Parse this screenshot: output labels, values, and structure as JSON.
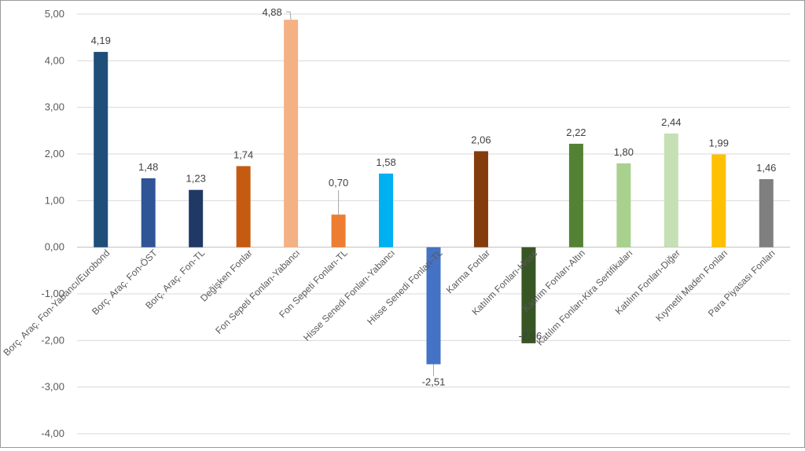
{
  "chart_data": {
    "type": "bar",
    "categories": [
      "Borç. Araç. Fon-Yabancı/Eurobond",
      "Borç. Araç. Fon-ÖST",
      "Borç. Araç. Fon-TL",
      "Değişken Fonlar",
      "Fon Sepeti Fonları-Yabancı",
      "Fon Sepeti Fonları-TL",
      "Hisse Senedi Fonları-Yabancı",
      "Hisse Senedi Fonları-TL",
      "Karma Fonlar",
      "Katılım Fonları-Hisse",
      "Katılım Fonları-Altın",
      "Katılım Fonları-Kira Sertifikaları",
      "Katılım Fonları-Diğer",
      "Kıymetli Maden Fonları",
      "Para Piyasası Fonları"
    ],
    "values": [
      4.19,
      1.48,
      1.23,
      1.74,
      4.88,
      0.7,
      1.58,
      -2.51,
      2.06,
      -2.06,
      2.22,
      1.8,
      2.44,
      1.99,
      1.46
    ],
    "value_labels": [
      "4,19",
      "1,48",
      "1,23",
      "1,74",
      "4,88",
      "0,70",
      "1,58",
      "-2,51",
      "2,06",
      "-2,06",
      "2,22",
      "1,80",
      "2,44",
      "1,99",
      "1,46"
    ],
    "colors": [
      "#1f4e79",
      "#2f5597",
      "#203864",
      "#c55a11",
      "#f4b183",
      "#ed7d31",
      "#00b0f0",
      "#4472c4",
      "#843c0c",
      "#375623",
      "#548235",
      "#a9d18e",
      "#c5e0b4",
      "#ffc000",
      "#7f7f7f"
    ],
    "ylim": [
      -4,
      5
    ],
    "yticks": [
      5,
      4,
      3,
      2,
      1,
      0,
      -1,
      -2,
      -3,
      -4
    ],
    "ytick_labels": [
      "5,00",
      "4,00",
      "3,00",
      "2,00",
      "1,00",
      "0,00",
      "-1,00",
      "-2,00",
      "-3,00",
      "-4,00"
    ],
    "title": "",
    "xlabel": "",
    "ylabel": "",
    "grid": true,
    "legend": "none"
  }
}
